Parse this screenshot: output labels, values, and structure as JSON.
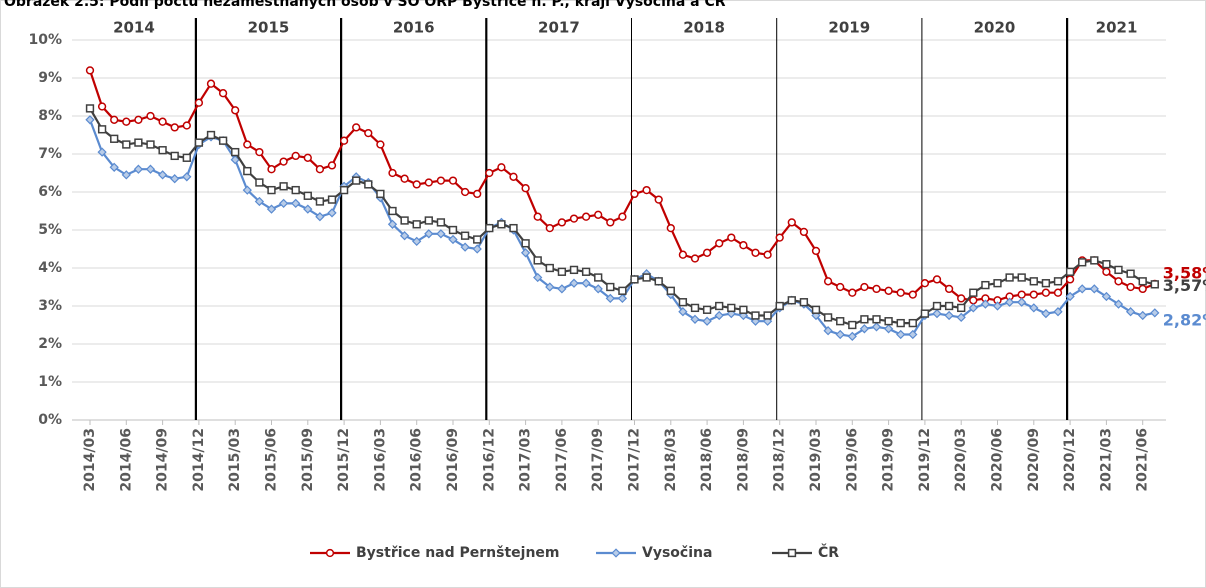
{
  "chart_data": {
    "type": "line",
    "title": "Obrázek 2.5: Podíl počtu nezaměstnaných osob v SO ORP Bystřice n. P., kraji Vysočina a ČR",
    "annotations": [
      "2014",
      "2015",
      "2016",
      "2017",
      "2018",
      "2019",
      "2020",
      "2021"
    ],
    "categories": [
      "2014/03",
      null,
      null,
      "2014/06",
      null,
      null,
      "2014/09",
      null,
      null,
      "2014/12",
      null,
      null,
      "2015/03",
      null,
      null,
      "2015/06",
      null,
      null,
      "2015/09",
      null,
      null,
      "2015/12",
      null,
      null,
      "2016/03",
      null,
      null,
      "2016/06",
      null,
      null,
      "2016/09",
      null,
      null,
      "2016/12",
      null,
      null,
      "2017/03",
      null,
      null,
      "2017/06",
      null,
      null,
      "2017/09",
      null,
      null,
      "2017/12",
      null,
      null,
      "2018/03",
      null,
      null,
      "2018/06",
      null,
      null,
      "2018/09",
      null,
      null,
      "2018/12",
      null,
      null,
      "2019/03",
      null,
      null,
      "2019/06",
      null,
      null,
      "2019/09",
      null,
      null,
      "2019/12",
      null,
      null,
      "2020/03",
      null,
      null,
      "2020/06",
      null,
      null,
      "2020/09",
      null,
      null,
      "2020/12",
      null,
      null,
      "2021/03",
      null,
      null,
      "2021/06",
      null
    ],
    "series": [
      {
        "name": "Bystřice nad Pernštejnem",
        "color": "#c00000",
        "marker": "circle",
        "values": [
          9.2,
          8.25,
          7.9,
          7.85,
          7.9,
          8.0,
          7.85,
          7.7,
          7.75,
          8.35,
          8.85,
          8.6,
          8.15,
          7.25,
          7.05,
          6.6,
          6.8,
          6.95,
          6.9,
          6.6,
          6.7,
          7.35,
          7.7,
          7.55,
          7.25,
          6.5,
          6.35,
          6.2,
          6.25,
          6.3,
          6.3,
          6.0,
          5.95,
          6.5,
          6.65,
          6.4,
          6.1,
          5.35,
          5.05,
          5.2,
          5.3,
          5.35,
          5.4,
          5.2,
          5.35,
          5.95,
          6.05,
          5.8,
          5.05,
          4.35,
          4.25,
          4.4,
          4.65,
          4.8,
          4.6,
          4.4,
          4.35,
          4.8,
          5.2,
          4.95,
          4.45,
          3.65,
          3.5,
          3.35,
          3.5,
          3.45,
          3.4,
          3.35,
          3.3,
          3.6,
          3.7,
          3.45,
          3.2,
          3.15,
          3.2,
          3.15,
          3.25,
          3.3,
          3.3,
          3.35,
          3.35,
          3.7,
          4.2,
          4.2,
          3.9,
          3.65,
          3.5,
          3.45,
          3.58
        ],
        "value_labels": [
          null,
          null,
          null,
          null,
          null,
          null,
          null,
          null,
          null,
          null,
          null,
          null,
          null,
          null,
          null,
          null,
          null,
          null,
          null,
          null,
          null,
          null,
          null,
          null,
          null,
          null,
          null,
          null,
          null,
          null,
          null,
          null,
          null,
          null,
          null,
          null,
          null,
          null,
          null,
          null,
          null,
          null,
          null,
          null,
          null,
          null,
          null,
          null,
          null,
          null,
          null,
          null,
          null,
          null,
          null,
          null,
          null,
          null,
          null,
          null,
          null,
          null,
          null,
          null,
          null,
          null,
          null,
          null,
          null,
          null,
          null,
          null,
          null,
          null,
          null,
          null,
          null,
          null,
          null,
          null,
          null,
          null,
          null,
          null,
          null,
          null,
          null,
          null,
          "3,58%"
        ]
      },
      {
        "name": "Vysočina",
        "color": "#5b8bd0",
        "marker": "diamond",
        "values": [
          7.9,
          7.05,
          6.65,
          6.45,
          6.6,
          6.6,
          6.45,
          6.35,
          6.4,
          7.25,
          7.45,
          7.35,
          6.85,
          6.05,
          5.75,
          5.55,
          5.7,
          5.7,
          5.55,
          5.35,
          5.45,
          6.15,
          6.4,
          6.25,
          5.85,
          5.15,
          4.85,
          4.7,
          4.9,
          4.9,
          4.75,
          4.55,
          4.5,
          5.05,
          5.2,
          5.0,
          4.4,
          3.75,
          3.5,
          3.45,
          3.6,
          3.6,
          3.45,
          3.2,
          3.2,
          3.7,
          3.85,
          3.65,
          3.3,
          2.85,
          2.65,
          2.6,
          2.75,
          2.8,
          2.75,
          2.6,
          2.6,
          2.95,
          3.15,
          3.05,
          2.75,
          2.35,
          2.25,
          2.2,
          2.4,
          2.45,
          2.4,
          2.25,
          2.25,
          2.75,
          2.8,
          2.75,
          2.7,
          2.95,
          3.05,
          3.0,
          3.1,
          3.1,
          2.95,
          2.8,
          2.85,
          3.25,
          3.45,
          3.45,
          3.25,
          3.05,
          2.85,
          2.75,
          2.82
        ],
        "value_labels": [
          null,
          null,
          null,
          null,
          null,
          null,
          null,
          null,
          null,
          null,
          null,
          null,
          null,
          null,
          null,
          null,
          null,
          null,
          null,
          null,
          null,
          null,
          null,
          null,
          null,
          null,
          null,
          null,
          null,
          null,
          null,
          null,
          null,
          null,
          null,
          null,
          null,
          null,
          null,
          null,
          null,
          null,
          null,
          null,
          null,
          null,
          null,
          null,
          null,
          null,
          null,
          null,
          null,
          null,
          null,
          null,
          null,
          null,
          null,
          null,
          null,
          null,
          null,
          null,
          null,
          null,
          null,
          null,
          null,
          null,
          null,
          null,
          null,
          null,
          null,
          null,
          null,
          null,
          null,
          null,
          null,
          null,
          null,
          null,
          null,
          null,
          null,
          null,
          "2,82%"
        ]
      },
      {
        "name": "ČR",
        "color": "#404040",
        "marker": "square",
        "values": [
          8.2,
          7.65,
          7.4,
          7.25,
          7.3,
          7.25,
          7.1,
          6.95,
          6.9,
          7.3,
          7.5,
          7.35,
          7.05,
          6.55,
          6.25,
          6.05,
          6.15,
          6.05,
          5.9,
          5.75,
          5.8,
          6.05,
          6.3,
          6.2,
          5.95,
          5.5,
          5.25,
          5.15,
          5.25,
          5.2,
          5.0,
          4.85,
          4.75,
          5.05,
          5.15,
          5.05,
          4.65,
          4.2,
          4.0,
          3.9,
          3.95,
          3.9,
          3.75,
          3.5,
          3.4,
          3.7,
          3.75,
          3.65,
          3.4,
          3.1,
          2.95,
          2.9,
          3.0,
          2.95,
          2.9,
          2.75,
          2.75,
          3.0,
          3.15,
          3.1,
          2.9,
          2.7,
          2.6,
          2.5,
          2.65,
          2.65,
          2.6,
          2.55,
          2.55,
          2.8,
          3.0,
          3.0,
          2.95,
          3.35,
          3.55,
          3.6,
          3.75,
          3.75,
          3.65,
          3.6,
          3.65,
          3.9,
          4.15,
          4.2,
          4.1,
          3.95,
          3.85,
          3.65,
          3.57
        ],
        "value_labels": [
          null,
          null,
          null,
          null,
          null,
          null,
          null,
          null,
          null,
          null,
          null,
          null,
          null,
          null,
          null,
          null,
          null,
          null,
          null,
          null,
          null,
          null,
          null,
          null,
          null,
          null,
          null,
          null,
          null,
          null,
          null,
          null,
          null,
          null,
          null,
          null,
          null,
          null,
          null,
          null,
          null,
          null,
          null,
          null,
          null,
          null,
          null,
          null,
          null,
          null,
          null,
          null,
          null,
          null,
          null,
          null,
          null,
          null,
          null,
          null,
          null,
          null,
          null,
          null,
          null,
          null,
          null,
          null,
          null,
          null,
          null,
          null,
          null,
          null,
          null,
          null,
          null,
          null,
          null,
          null,
          null,
          null,
          null,
          null,
          null,
          null,
          null,
          null,
          "3,57%"
        ]
      }
    ],
    "ylim": [
      0,
      10
    ],
    "yticks": [
      {
        "value": 0,
        "label": "0%"
      },
      {
        "value": 1,
        "label": "1%"
      },
      {
        "value": 2,
        "label": "2%"
      },
      {
        "value": 3,
        "label": "3%"
      },
      {
        "value": 4,
        "label": "4%"
      },
      {
        "value": 5,
        "label": "5%"
      },
      {
        "value": 6,
        "label": "6%"
      },
      {
        "value": 7,
        "label": "7%"
      },
      {
        "value": 8,
        "label": "8%"
      },
      {
        "value": 9,
        "label": "9%"
      },
      {
        "value": 10,
        "label": "10%"
      }
    ],
    "grid": true,
    "legend": "bottom"
  }
}
